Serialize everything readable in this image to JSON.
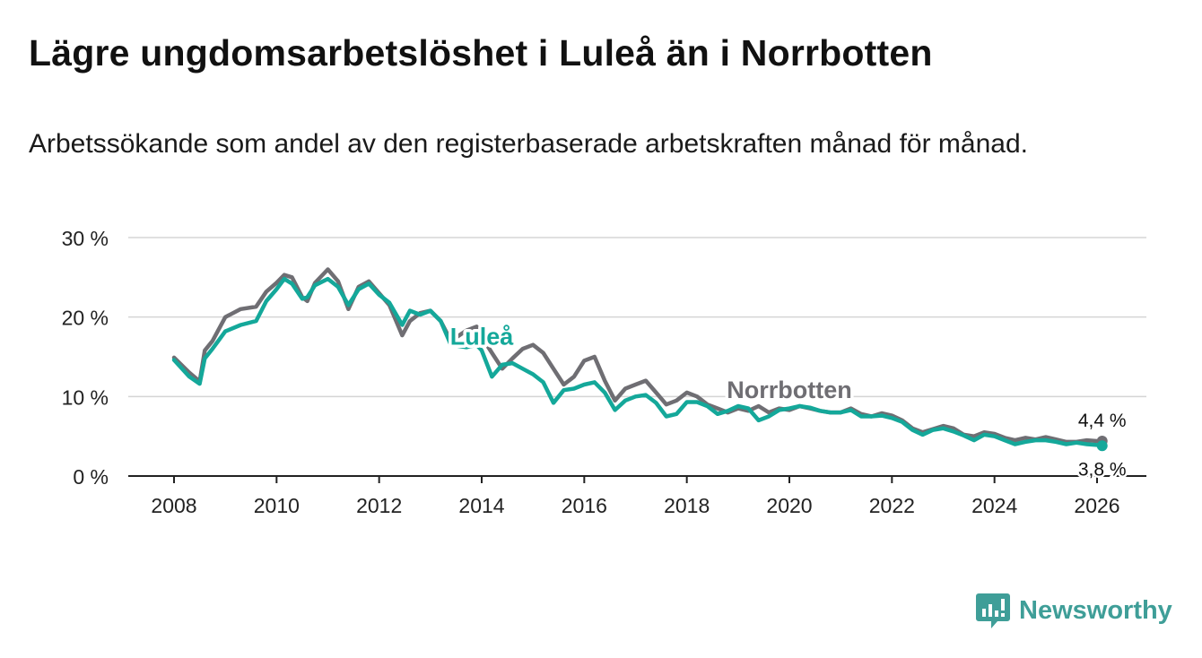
{
  "title": "Lägre ungdomsarbetslöshet i Luleå än i Norrbotten",
  "subtitle": "Arbetssökande som andel av den registerbaserade arbetskraften månad för månad.",
  "brand": {
    "name": "Newsworthy",
    "logo_icon": "bar-chart-logo-icon",
    "color": "#3f9e98"
  },
  "chart_data": {
    "type": "line",
    "ylim": [
      0,
      30
    ],
    "xlim": [
      2007.75,
      2027
    ],
    "y_ticks": [
      0,
      10,
      20,
      30
    ],
    "y_tick_labels": [
      "0 %",
      "10 %",
      "20 %",
      "30 %"
    ],
    "x_ticks": [
      2008,
      2010,
      2012,
      2014,
      2016,
      2018,
      2020,
      2022,
      2024,
      2026
    ],
    "x_tick_labels": [
      "2008",
      "2010",
      "2012",
      "2014",
      "2016",
      "2018",
      "2020",
      "2022",
      "2024",
      "2026"
    ],
    "grid": true,
    "series": [
      {
        "name": "Norrbotten",
        "color": "#6f6e73",
        "end_label": "4,4 %",
        "x": [
          2008.0,
          2008.3,
          2008.5,
          2008.6,
          2008.75,
          2009.0,
          2009.3,
          2009.6,
          2009.8,
          2010.0,
          2010.15,
          2010.3,
          2010.5,
          2010.6,
          2010.75,
          2011.0,
          2011.2,
          2011.4,
          2011.6,
          2011.8,
          2012.0,
          2012.2,
          2012.45,
          2012.6,
          2012.8,
          2013.0,
          2013.2,
          2013.4,
          2013.7,
          2013.9,
          2014.0,
          2014.2,
          2014.4,
          2014.6,
          2014.8,
          2015.0,
          2015.2,
          2015.4,
          2015.6,
          2015.8,
          2016.0,
          2016.2,
          2016.4,
          2016.6,
          2016.8,
          2017.0,
          2017.2,
          2017.4,
          2017.6,
          2017.8,
          2018.0,
          2018.2,
          2018.4,
          2018.6,
          2018.8,
          2019.0,
          2019.2,
          2019.4,
          2019.6,
          2019.8,
          2020.0,
          2020.2,
          2020.4,
          2020.6,
          2020.8,
          2021.0,
          2021.2,
          2021.4,
          2021.6,
          2021.8,
          2022.0,
          2022.2,
          2022.4,
          2022.6,
          2022.8,
          2023.0,
          2023.2,
          2023.4,
          2023.6,
          2023.8,
          2024.0,
          2024.2,
          2024.4,
          2024.6,
          2024.8,
          2025.0,
          2025.2,
          2025.4,
          2025.6,
          2025.8,
          2026.0,
          2026.1
        ],
        "values": [
          14.9,
          13.0,
          11.9,
          15.8,
          17.0,
          20.0,
          21.0,
          21.3,
          23.2,
          24.3,
          25.3,
          25.0,
          22.5,
          22.0,
          24.3,
          26.0,
          24.5,
          21.0,
          23.8,
          24.5,
          23.0,
          21.5,
          17.7,
          19.5,
          20.5,
          20.8,
          19.5,
          17.0,
          18.3,
          18.8,
          17.5,
          15.5,
          13.5,
          14.8,
          16.0,
          16.5,
          15.5,
          13.5,
          11.5,
          12.5,
          14.5,
          15.0,
          12.0,
          9.5,
          11.0,
          11.5,
          12.0,
          10.5,
          9.0,
          9.5,
          10.5,
          10.0,
          9.0,
          8.5,
          8.0,
          8.5,
          8.2,
          8.8,
          8.0,
          8.5,
          8.3,
          8.8,
          8.5,
          8.2,
          8.0,
          8.0,
          8.5,
          7.8,
          7.5,
          7.9,
          7.6,
          7.0,
          6.0,
          5.5,
          5.9,
          6.3,
          6.0,
          5.2,
          5.0,
          5.5,
          5.3,
          4.8,
          4.5,
          4.8,
          4.6,
          4.9,
          4.6,
          4.3,
          4.3,
          4.5,
          4.4,
          4.4
        ]
      },
      {
        "name": "Luleå",
        "color": "#14a89a",
        "end_label": "3,8 %",
        "x": [
          2008.0,
          2008.3,
          2008.5,
          2008.6,
          2008.75,
          2009.0,
          2009.3,
          2009.6,
          2009.8,
          2010.0,
          2010.15,
          2010.3,
          2010.5,
          2010.6,
          2010.75,
          2011.0,
          2011.2,
          2011.4,
          2011.6,
          2011.8,
          2012.0,
          2012.2,
          2012.45,
          2012.6,
          2012.8,
          2013.0,
          2013.2,
          2013.4,
          2013.7,
          2013.9,
          2014.0,
          2014.2,
          2014.4,
          2014.6,
          2014.8,
          2015.0,
          2015.2,
          2015.4,
          2015.6,
          2015.8,
          2016.0,
          2016.2,
          2016.4,
          2016.6,
          2016.8,
          2017.0,
          2017.2,
          2017.4,
          2017.6,
          2017.8,
          2018.0,
          2018.2,
          2018.4,
          2018.6,
          2018.8,
          2019.0,
          2019.2,
          2019.4,
          2019.6,
          2019.8,
          2020.0,
          2020.2,
          2020.4,
          2020.6,
          2020.8,
          2021.0,
          2021.2,
          2021.4,
          2021.6,
          2021.8,
          2022.0,
          2022.2,
          2022.4,
          2022.6,
          2022.8,
          2023.0,
          2023.2,
          2023.4,
          2023.6,
          2023.8,
          2024.0,
          2024.2,
          2024.4,
          2024.6,
          2024.8,
          2025.0,
          2025.2,
          2025.4,
          2025.6,
          2025.8,
          2026.0,
          2026.1
        ],
        "values": [
          14.6,
          12.5,
          11.6,
          14.8,
          16.0,
          18.2,
          19.0,
          19.5,
          22.0,
          23.5,
          24.8,
          24.2,
          22.3,
          22.5,
          24.0,
          24.8,
          23.8,
          21.5,
          23.5,
          24.2,
          22.8,
          21.8,
          19.0,
          20.8,
          20.3,
          20.8,
          19.5,
          16.5,
          16.2,
          16.5,
          15.8,
          12.5,
          14.0,
          14.2,
          13.5,
          12.8,
          11.8,
          9.2,
          10.8,
          11.0,
          11.5,
          11.8,
          10.5,
          8.3,
          9.5,
          10.0,
          10.2,
          9.2,
          7.5,
          7.8,
          9.3,
          9.3,
          8.8,
          7.8,
          8.2,
          8.8,
          8.5,
          7.0,
          7.5,
          8.3,
          8.5,
          8.8,
          8.6,
          8.2,
          8.0,
          8.0,
          8.3,
          7.5,
          7.5,
          7.6,
          7.3,
          6.8,
          5.8,
          5.2,
          5.8,
          6.0,
          5.6,
          5.1,
          4.5,
          5.2,
          5.0,
          4.5,
          4.0,
          4.3,
          4.5,
          4.5,
          4.3,
          4.0,
          4.2,
          4.0,
          3.9,
          3.8
        ]
      }
    ],
    "annotations": [
      {
        "text": "Luleå",
        "series": "Luleå",
        "x": 2014.0,
        "y": 16.5
      },
      {
        "text": "Norrbotten",
        "series": "Norrbotten",
        "x": 2020.0,
        "y": 9.8
      }
    ]
  }
}
